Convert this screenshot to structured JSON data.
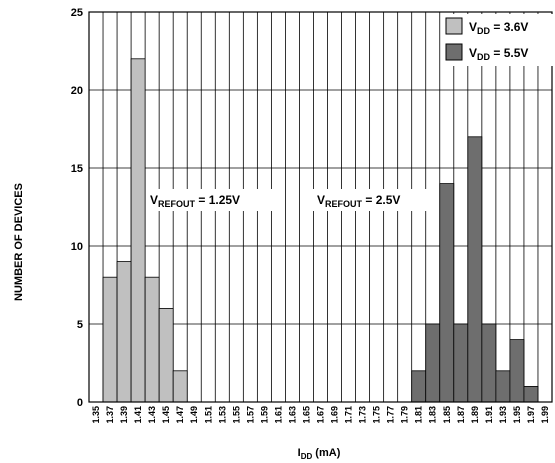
{
  "chart_data": {
    "type": "bar",
    "xlabel_main": "I",
    "xlabel_sub": "DD",
    "xlabel_unit": " (mA)",
    "ylabel": "NUMBER OF DEVICES",
    "ylim": [
      0,
      25
    ],
    "yticks": [
      0,
      5,
      10,
      15,
      20,
      25
    ],
    "grid": true,
    "legend_position": "top-right",
    "categories": [
      "1.35",
      "1.37",
      "1.39",
      "1.41",
      "1.43",
      "1.45",
      "1.47",
      "1.49",
      "1.51",
      "1.53",
      "1.55",
      "1.57",
      "1.59",
      "1.61",
      "1.63",
      "1.65",
      "1.67",
      "1.69",
      "1.71",
      "1.73",
      "1.75",
      "1.77",
      "1.79",
      "1.81",
      "1.83",
      "1.85",
      "1.87",
      "1.89",
      "1.91",
      "1.93",
      "1.95",
      "1.97",
      "1.99"
    ],
    "series": [
      {
        "legend_main": "V",
        "legend_sub": "DD",
        "legend_rest": " = 3.6V",
        "color": "#c0c0c0",
        "values": [
          0,
          8,
          9,
          22,
          8,
          6,
          2,
          0,
          0,
          0,
          0,
          0,
          0,
          0,
          0,
          0,
          0,
          0,
          0,
          0,
          0,
          0,
          0,
          0,
          0,
          0,
          0,
          0,
          0,
          0,
          0,
          0,
          0
        ]
      },
      {
        "legend_main": "V",
        "legend_sub": "DD",
        "legend_rest": " = 5.5V",
        "color": "#6e6e6e",
        "values": [
          0,
          0,
          0,
          0,
          0,
          0,
          0,
          0,
          0,
          0,
          0,
          0,
          0,
          0,
          0,
          0,
          0,
          0,
          0,
          0,
          0,
          0,
          0,
          2,
          5,
          14,
          5,
          17,
          5,
          2,
          4,
          1,
          0
        ]
      }
    ],
    "annotations": [
      {
        "main": "V",
        "sub": "REFOUT",
        "rest": " = 1.25V"
      },
      {
        "main": "V",
        "sub": "REFOUT",
        "rest": " = 2.5V"
      }
    ]
  }
}
